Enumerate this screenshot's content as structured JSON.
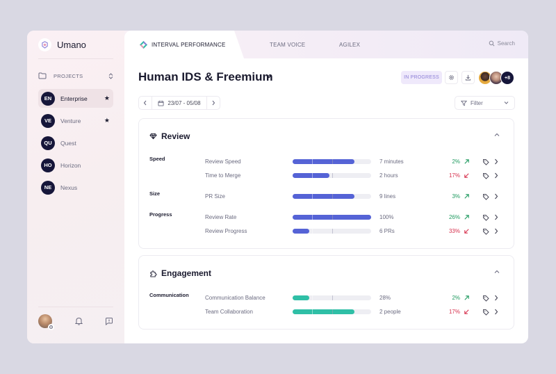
{
  "app": {
    "name": "Umano"
  },
  "sidebar": {
    "projects_label": "PROJECTS",
    "items": [
      {
        "badge": "EN",
        "label": "Enterprise",
        "starred": true,
        "active": true
      },
      {
        "badge": "VE",
        "label": "Venture",
        "starred": true,
        "active": false
      },
      {
        "badge": "QU",
        "label": "Quest",
        "starred": false,
        "active": false
      },
      {
        "badge": "HO",
        "label": "Horizon",
        "starred": false,
        "active": false
      },
      {
        "badge": "NE",
        "label": "Nexus",
        "starred": false,
        "active": false
      }
    ]
  },
  "tabs": [
    {
      "label": "INTERVAL PERFORMANCE",
      "active": true
    },
    {
      "label": "TEAM VOICE",
      "active": false
    },
    {
      "label": "AGILEX",
      "active": false
    }
  ],
  "search": {
    "placeholder": "Search"
  },
  "header": {
    "title": "Human IDS & Freemium",
    "status": "IN PROGRESS",
    "more_avatars": "+8"
  },
  "date_range": {
    "label": "23/07 - 05/08"
  },
  "filter": {
    "label": "Filter"
  },
  "colors": {
    "accent_blue": "#5563d6",
    "accent_teal": "#2fbfa6",
    "up": "#1f9a5f",
    "down": "#d6304d",
    "badge_bg": "#16163a"
  },
  "review": {
    "title": "Review",
    "groups": [
      {
        "label": "Speed"
      },
      {
        "label": "Size"
      },
      {
        "label": "Progress"
      }
    ],
    "metrics": [
      {
        "name": "Review Speed",
        "value": "7 minutes",
        "pct": "2%",
        "trend": "up",
        "fill": 0.79
      },
      {
        "name": "Time to Merge",
        "value": "2 hours",
        "pct": "17%",
        "trend": "down",
        "fill": 0.47
      },
      {
        "name": "PR Size",
        "value": "9 lines",
        "pct": "3%",
        "trend": "up",
        "fill": 0.79
      },
      {
        "name": "Review Rate",
        "value": "100%",
        "pct": "26%",
        "trend": "up",
        "fill": 1.0
      },
      {
        "name": "Review Progress",
        "value": "6 PRs",
        "pct": "33%",
        "trend": "down",
        "fill": 0.21
      }
    ]
  },
  "engagement": {
    "title": "Engagement",
    "groups": [
      {
        "label": "Communication"
      }
    ],
    "metrics": [
      {
        "name": "Communication Balance",
        "value": "28%",
        "pct": "2%",
        "trend": "up",
        "fill": 0.21
      },
      {
        "name": "Team Collaboration",
        "value": "2 people",
        "pct": "17%",
        "trend": "down",
        "fill": 0.79
      }
    ]
  }
}
